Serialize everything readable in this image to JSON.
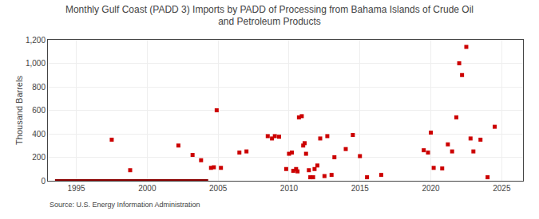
{
  "chart_data": {
    "type": "scatter",
    "title": "Monthly Gulf Coast (PADD 3) Imports by PADD of Processing from Bahama Islands of Crude Oil\nand Petroleum Products",
    "ylabel": "Thousand Barrels",
    "annotations": [
      "Source: U.S. Energy Information Administration"
    ],
    "xlim": [
      1993.0,
      2026.5
    ],
    "xticks": [
      1995,
      2000,
      2005,
      2010,
      2015,
      2020,
      2025
    ],
    "ylim": [
      0,
      1200
    ],
    "yticks": [
      0,
      200,
      400,
      600,
      800,
      {
        "value": 1000,
        "label": "1,000"
      },
      {
        "value": 1200,
        "label": "1,200"
      }
    ],
    "grid": true,
    "series": [
      {
        "type": "line",
        "color": "#8b0000",
        "x": [
          1993.5,
          2004.3
        ],
        "values": [
          0,
          0
        ]
      },
      {
        "type": "scatter",
        "color": "#cc0000",
        "marker": "square",
        "x": [
          1997.5,
          1998.8,
          2002.2,
          2003.2,
          2003.8,
          2004.5,
          2004.7,
          2004.9,
          2005.2,
          2006.5,
          2007.0,
          2008.5,
          2008.8,
          2009.0,
          2009.3,
          2009.8,
          2010.0,
          2010.2,
          2010.3,
          2010.5,
          2010.6,
          2010.7,
          2010.9,
          2011.0,
          2011.1,
          2011.2,
          2011.4,
          2011.5,
          2011.7,
          2011.8,
          2012.0,
          2012.2,
          2012.5,
          2012.7,
          2013.0,
          2013.2,
          2014.0,
          2014.5,
          2015.0,
          2015.5,
          2016.5,
          2019.5,
          2019.8,
          2020.0,
          2020.2,
          2020.8,
          2021.2,
          2021.5,
          2021.8,
          2022.0,
          2022.2,
          2022.5,
          2022.8,
          2023.0,
          2023.5,
          2024.0,
          2024.5
        ],
        "values": [
          350,
          90,
          300,
          220,
          175,
          110,
          115,
          600,
          110,
          240,
          250,
          380,
          360,
          380,
          375,
          100,
          230,
          240,
          85,
          100,
          80,
          540,
          550,
          300,
          320,
          230,
          90,
          30,
          30,
          100,
          130,
          360,
          40,
          380,
          50,
          200,
          270,
          390,
          210,
          30,
          50,
          260,
          240,
          410,
          110,
          105,
          310,
          250,
          540,
          1000,
          900,
          1140,
          360,
          250,
          350,
          30,
          460
        ]
      }
    ]
  }
}
